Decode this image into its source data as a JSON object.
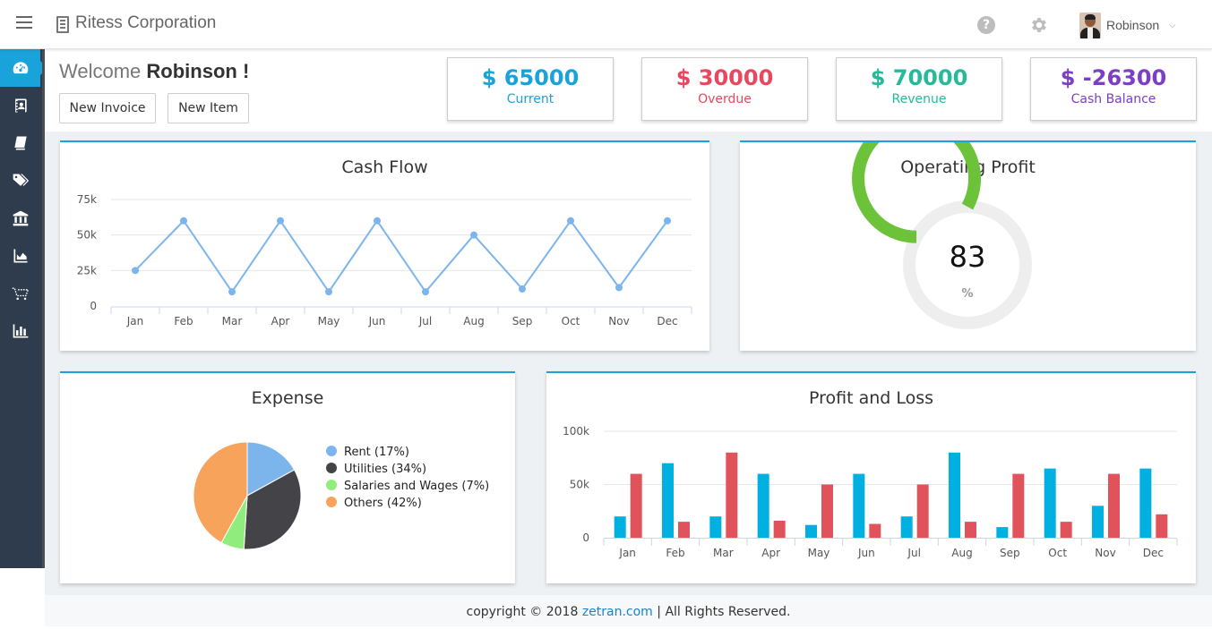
{
  "header": {
    "brand_name": "Ritess Corporation",
    "help_icon": "?",
    "user_name": "Robinson",
    "caret": "⌵"
  },
  "sidebar": {
    "items": [
      {
        "icon": "dashboard-icon",
        "active": true
      },
      {
        "icon": "contacts-icon",
        "active": false
      },
      {
        "icon": "book-icon",
        "active": false
      },
      {
        "icon": "tags-icon",
        "active": false
      },
      {
        "icon": "bank-icon",
        "active": false
      },
      {
        "icon": "area-chart-icon",
        "active": false
      },
      {
        "icon": "cart-icon",
        "active": false
      },
      {
        "icon": "bar-chart-icon",
        "active": false
      }
    ]
  },
  "welcome": {
    "greeting": "Welcome ",
    "name": "Robinson !"
  },
  "actions": {
    "new_invoice": "New Invoice",
    "new_item": "New Item"
  },
  "stats": [
    {
      "value": "$ 65000",
      "label": "Current",
      "color": "#1aa3db"
    },
    {
      "value": "$ 30000",
      "label": "Overdue",
      "color": "#e8475f"
    },
    {
      "value": "$ 70000",
      "label": "Revenue",
      "color": "#26b99a"
    },
    {
      "value": "$ -26300",
      "label": "Cash Balance",
      "color": "#7a3fc4"
    }
  ],
  "cards": {
    "cash_flow_title": "Cash Flow",
    "operating_profit_title": "Operating Profit",
    "expense_title": "Expense",
    "profit_loss_title": "Profit and Loss"
  },
  "gauge": {
    "value": "83",
    "unit": "%",
    "fraction": 0.83,
    "color": "#6cc33a"
  },
  "chart_data": [
    {
      "type": "line",
      "title": "Cash Flow",
      "categories": [
        "Jan",
        "Feb",
        "Mar",
        "Apr",
        "May",
        "Jun",
        "Jul",
        "Aug",
        "Sep",
        "Oct",
        "Nov",
        "Dec"
      ],
      "values": [
        25000,
        60000,
        10000,
        60000,
        10000,
        60000,
        10000,
        50000,
        12000,
        60000,
        13000,
        60000
      ],
      "yticks": [
        "0",
        "25k",
        "50k",
        "75k"
      ],
      "ylim": [
        0,
        75000
      ],
      "color": "#7cb5ec",
      "grid": true
    },
    {
      "type": "pie",
      "title": "Expense",
      "slices": [
        {
          "label": "Rent (17%)",
          "value": 17,
          "color": "#7cb5ec"
        },
        {
          "label": "Utilities (34%)",
          "value": 34,
          "color": "#434348"
        },
        {
          "label": "Salaries and Wages (7%)",
          "value": 7,
          "color": "#90ed7d"
        },
        {
          "label": "Others (42%)",
          "value": 42,
          "color": "#f7a35c"
        }
      ],
      "legend": "right"
    },
    {
      "type": "bar",
      "title": "Profit and Loss",
      "categories": [
        "Jan",
        "Feb",
        "Mar",
        "Apr",
        "May",
        "Jun",
        "Jul",
        "Aug",
        "Sep",
        "Oct",
        "Nov",
        "Dec"
      ],
      "series": [
        {
          "values": [
            20000,
            70000,
            20000,
            60000,
            12000,
            60000,
            20000,
            80000,
            10000,
            65000,
            30000,
            65000
          ],
          "color": "#00b0e0"
        },
        {
          "values": [
            60000,
            15000,
            80000,
            16000,
            50000,
            13000,
            50000,
            15000,
            60000,
            15000,
            60000,
            22000
          ],
          "color": "#e0535a"
        }
      ],
      "yticks": [
        "0",
        "50k",
        "100k"
      ],
      "ylim": [
        0,
        100000
      ],
      "grid": true
    }
  ],
  "footer": {
    "prefix": "copyright © 2018 ",
    "link": "zetran.com",
    "suffix": " | All Rights Reserved."
  }
}
